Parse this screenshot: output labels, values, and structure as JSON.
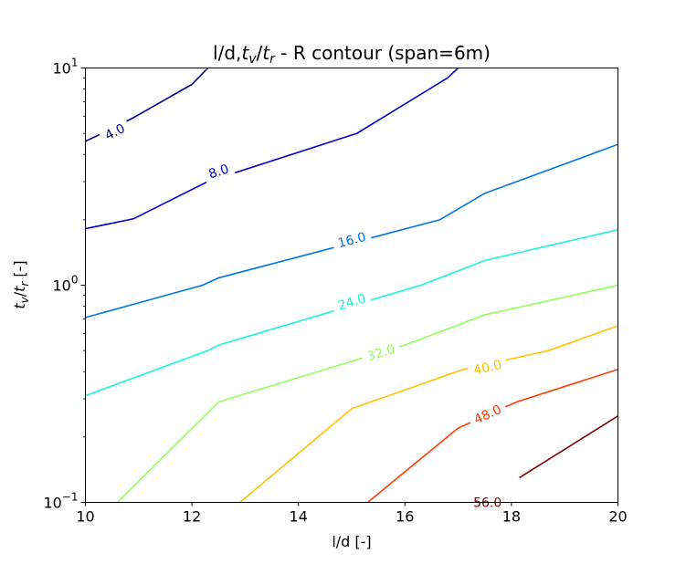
{
  "chart_data": {
    "type": "contour",
    "title": "l/d,t_v/t_r - R contour (span=6m)",
    "xlabel": "l/d [-]",
    "ylabel": "t_v/t_r [-]",
    "xlim": [
      10,
      20
    ],
    "ylim": [
      0.1,
      10
    ],
    "yscale": "log",
    "x_ticks": [
      "10",
      "12",
      "14",
      "16",
      "18",
      "20"
    ],
    "y_ticks": [
      {
        "value": 0.1,
        "base": "10",
        "exp": "−1"
      },
      {
        "value": 1,
        "base": "10",
        "exp": "0"
      },
      {
        "value": 10,
        "base": "10",
        "exp": "1"
      }
    ],
    "grid": false,
    "series": [
      {
        "name": "4.0",
        "color": "#00008b",
        "points": [
          [
            10.0,
            4.6
          ],
          [
            10.2,
            4.85
          ],
          [
            10.9,
            5.9
          ],
          [
            12.0,
            8.4
          ],
          [
            12.3,
            10.0
          ]
        ],
        "label_at": [
          10.55,
          5.1
        ]
      },
      {
        "name": "8.0",
        "color": "#0000cd",
        "points": [
          [
            10.0,
            1.82
          ],
          [
            10.9,
            2.02
          ],
          [
            12.3,
            3.0
          ],
          [
            15.1,
            5.0
          ],
          [
            16.8,
            9.0
          ],
          [
            17.0,
            10.0
          ]
        ],
        "label_at": [
          12.5,
          3.35
        ]
      },
      {
        "name": "16.0",
        "color": "#0073e6",
        "points": [
          [
            10.0,
            0.71
          ],
          [
            12.2,
            1.0
          ],
          [
            12.5,
            1.08
          ],
          [
            16.65,
            2.0
          ],
          [
            17.5,
            2.65
          ],
          [
            20.0,
            4.45
          ]
        ],
        "label_at": [
          15.0,
          1.62
        ]
      },
      {
        "name": "24.0",
        "color": "#1af5d8",
        "points": [
          [
            10.0,
            0.31
          ],
          [
            12.3,
            0.5
          ],
          [
            12.5,
            0.53
          ],
          [
            16.3,
            1.0
          ],
          [
            17.5,
            1.3
          ],
          [
            20.0,
            1.8
          ]
        ],
        "label_at": [
          15.0,
          0.84
        ]
      },
      {
        "name": "32.0",
        "color": "#91ff5c",
        "points": [
          [
            10.6,
            0.1
          ],
          [
            12.5,
            0.29
          ],
          [
            16.0,
            0.53
          ],
          [
            17.5,
            0.73
          ],
          [
            20.0,
            1.0
          ]
        ],
        "label_at": [
          15.55,
          0.49
        ]
      },
      {
        "name": "40.0",
        "color": "#ffc400",
        "points": [
          [
            12.9,
            0.1
          ],
          [
            15.0,
            0.27
          ],
          [
            17.1,
            0.41
          ],
          [
            18.7,
            0.5
          ],
          [
            20.0,
            0.65
          ]
        ],
        "label_at": [
          17.55,
          0.42
        ]
      },
      {
        "name": "48.0",
        "color": "#ff3c00",
        "points": [
          [
            15.3,
            0.1
          ],
          [
            17.0,
            0.22
          ],
          [
            18.1,
            0.29
          ],
          [
            20.0,
            0.41
          ]
        ],
        "label_at": [
          17.55,
          0.255
        ]
      },
      {
        "name": "56.0",
        "color": "#7d0000",
        "points": [
          [
            18.15,
            0.13
          ],
          [
            20.0,
            0.25
          ]
        ],
        "label_at": [
          17.55,
          0.1
        ]
      }
    ]
  }
}
